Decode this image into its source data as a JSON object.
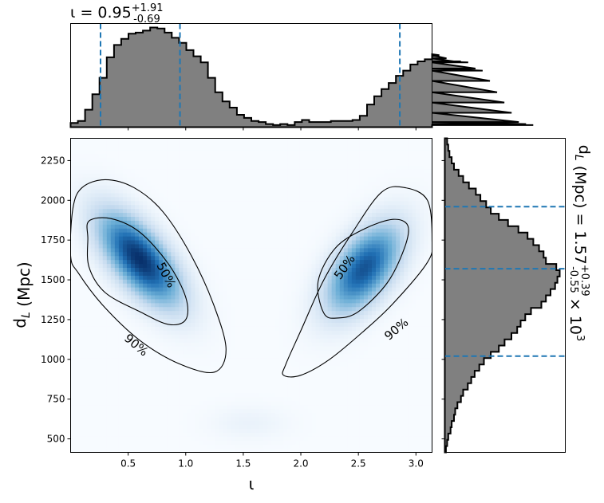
{
  "chart_data": [
    {
      "type": "heatmap",
      "panel": "joint",
      "xlabel": "ι",
      "ylabel": "d_L (Mpc)",
      "xlim": [
        0.0,
        3.14
      ],
      "ylim": [
        415,
        2390
      ],
      "xticks": [
        0.5,
        1.0,
        1.5,
        2.0,
        2.5,
        3.0
      ],
      "xtick_labels": [
        "0.5",
        "1.0",
        "1.5",
        "2.0",
        "2.5",
        "3.0"
      ],
      "yticks": [
        500,
        750,
        1000,
        1250,
        1500,
        1750,
        2000,
        2250
      ],
      "ytick_labels": [
        "500",
        "750",
        "1000",
        "1250",
        "1500",
        "1750",
        "2000",
        "2250"
      ],
      "colormap": "Blues",
      "modes": [
        {
          "x": 0.6,
          "y": 1630,
          "sx": 0.23,
          "sy": 190,
          "rho": -0.65,
          "weight": 1.0
        },
        {
          "x": 2.55,
          "y": 1570,
          "sx": 0.21,
          "sy": 180,
          "rho": 0.55,
          "weight": 0.85
        },
        {
          "x": 1.55,
          "y": 600,
          "sx": 0.22,
          "sy": 70,
          "rho": 0.0,
          "weight": 0.05
        }
      ],
      "contours": [
        {
          "label": "50%",
          "paths": [
            [
              [
                0.16,
                1870
              ],
              [
                0.35,
                1885
              ],
              [
                0.6,
                1800
              ],
              [
                0.85,
                1600
              ],
              [
                1.0,
                1390
              ],
              [
                1.0,
                1250
              ],
              [
                0.85,
                1220
              ],
              [
                0.6,
                1300
              ],
              [
                0.3,
                1420
              ],
              [
                0.16,
                1580
              ],
              [
                0.15,
                1760
              ]
            ],
            [
              [
                2.15,
                1490
              ],
              [
                2.3,
                1700
              ],
              [
                2.55,
                1820
              ],
              [
                2.8,
                1880
              ],
              [
                2.93,
                1840
              ],
              [
                2.9,
                1700
              ],
              [
                2.75,
                1480
              ],
              [
                2.5,
                1300
              ],
              [
                2.32,
                1260
              ],
              [
                2.2,
                1290
              ]
            ]
          ]
        },
        {
          "label": "90%",
          "paths": [
            [
              [
                0.02,
                1950
              ],
              [
                0.1,
                2080
              ],
              [
                0.3,
                2130
              ],
              [
                0.55,
                2080
              ],
              [
                0.8,
                1930
              ],
              [
                1.05,
                1650
              ],
              [
                1.25,
                1330
              ],
              [
                1.35,
                1060
              ],
              [
                1.25,
                920
              ],
              [
                0.95,
                970
              ],
              [
                0.6,
                1120
              ],
              [
                0.28,
                1340
              ],
              [
                0.07,
                1540
              ],
              [
                0.0,
                1650
              ]
            ],
            [
              [
                1.87,
                970
              ],
              [
                2.0,
                1180
              ],
              [
                2.2,
                1500
              ],
              [
                2.45,
                1800
              ],
              [
                2.7,
                2050
              ],
              [
                2.9,
                2080
              ],
              [
                3.1,
                2000
              ],
              [
                3.14,
                1750
              ],
              [
                3.1,
                1610
              ],
              [
                2.8,
                1350
              ],
              [
                2.55,
                1180
              ],
              [
                2.25,
                1000
              ],
              [
                2.0,
                900
              ],
              [
                1.85,
                900
              ]
            ]
          ]
        }
      ],
      "contour_labels": [
        {
          "text": "50%",
          "x": 0.83,
          "y": 1530,
          "angle": 62
        },
        {
          "text": "90%",
          "x": 0.57,
          "y": 1090,
          "angle": 40
        },
        {
          "text": "50%",
          "x": 2.38,
          "y": 1580,
          "angle": -55
        },
        {
          "text": "90%",
          "x": 2.83,
          "y": 1190,
          "angle": -40
        }
      ]
    },
    {
      "type": "bar",
      "panel": "top-marginal",
      "title": "ι = 0.95^{+1.91}_{-0.69}",
      "xlim": [
        0.0,
        3.14
      ],
      "bin_edges_start": 0.0,
      "bin_width": 0.0628,
      "values": [
        0.04,
        0.06,
        0.17,
        0.32,
        0.48,
        0.68,
        0.8,
        0.86,
        0.91,
        0.92,
        0.94,
        0.97,
        0.96,
        0.92,
        0.87,
        0.82,
        0.75,
        0.69,
        0.63,
        0.48,
        0.34,
        0.25,
        0.19,
        0.12,
        0.09,
        0.06,
        0.05,
        0.03,
        0.02,
        0.03,
        0.02,
        0.05,
        0.07,
        0.05,
        0.05,
        0.05,
        0.06,
        0.06,
        0.06,
        0.07,
        0.11,
        0.22,
        0.3,
        0.37,
        0.43,
        0.5,
        0.55,
        0.61,
        0.64,
        0.66,
        0.71,
        0.7,
        0.67,
        0.64,
        0.64,
        0.63,
        0.57,
        0.55,
        0.45,
        0.34,
        0.24,
        0.14,
        0.05,
        0.03,
        0.02
      ],
      "lines": [
        0.26,
        0.95,
        2.86
      ]
    },
    {
      "type": "bar",
      "panel": "right-marginal",
      "title": "d_L (Mpc) = 1.57^{+0.39}_{-0.55} × 10^3",
      "ylim": [
        415,
        2390
      ],
      "bin_edges_start": 415,
      "bin_width": 39.5,
      "values": [
        0.01,
        0.02,
        0.03,
        0.05,
        0.06,
        0.08,
        0.09,
        0.11,
        0.14,
        0.16,
        0.2,
        0.23,
        0.26,
        0.3,
        0.34,
        0.4,
        0.47,
        0.52,
        0.58,
        0.63,
        0.66,
        0.7,
        0.75,
        0.84,
        0.88,
        0.92,
        0.96,
        0.98,
        1.0,
        0.97,
        0.88,
        0.86,
        0.82,
        0.77,
        0.72,
        0.64,
        0.55,
        0.47,
        0.4,
        0.36,
        0.31,
        0.27,
        0.21,
        0.16,
        0.12,
        0.08,
        0.06,
        0.04,
        0.03,
        0.02
      ],
      "lines": [
        1020,
        1570,
        1960
      ]
    }
  ]
}
